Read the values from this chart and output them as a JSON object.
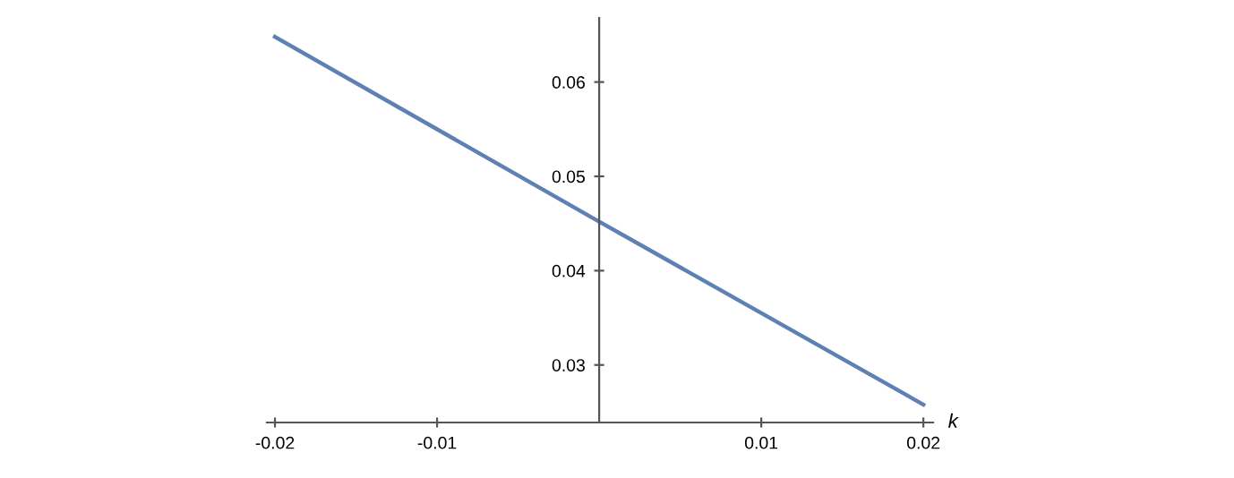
{
  "chart_data": {
    "type": "line",
    "xlabel": "k",
    "x": [
      -0.02,
      0,
      0.02
    ],
    "series": [
      {
        "color": "#5e81b5",
        "values": [
          0.0648,
          0.0452,
          0.0258
        ]
      }
    ],
    "xlim": [
      -0.0205,
      0.0206
    ],
    "ylim": [
      0.0239,
      0.0668
    ],
    "xticks": [
      -0.02,
      -0.01,
      0.01,
      0.02
    ],
    "yticks": [
      0.03,
      0.04,
      0.05,
      0.06
    ],
    "grid": false,
    "legend": false,
    "marker": "none",
    "line_style": "solid"
  }
}
